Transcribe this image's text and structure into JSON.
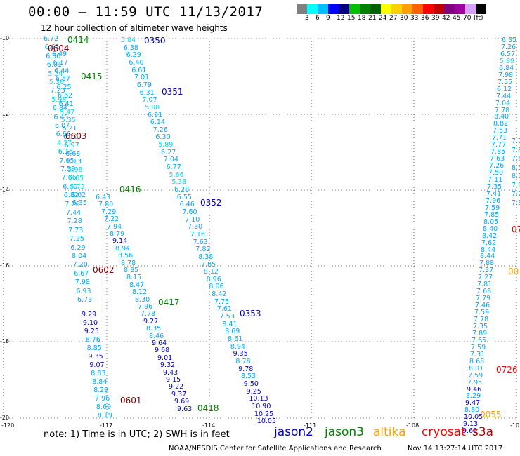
{
  "header": {
    "title": "00:00 – 11:59 UTC 11/13/2017",
    "subtitle": "12 hour collection of altimeter wave heights"
  },
  "color_scale": {
    "colors": [
      "#808080",
      "#00ffff",
      "#00bfff",
      "#0000ff",
      "#000080",
      "#00c000",
      "#008000",
      "#006000",
      "#ffff00",
      "#ffd000",
      "#ffa000",
      "#ff6000",
      "#ff0000",
      "#c00000",
      "#800080",
      "#a000a0",
      "#d8a0ff",
      "#000000"
    ],
    "labels": [
      "3",
      "6",
      "9",
      "12",
      "15",
      "18",
      "21",
      "24",
      "27",
      "30",
      "33",
      "36",
      "39",
      "42",
      "45",
      "70",
      "(ft)"
    ]
  },
  "axes": {
    "lat_labels": [
      "-10",
      "-12",
      "-14",
      "-16",
      "-18",
      "-20"
    ],
    "lon_labels": [
      "-120",
      "-117",
      "-114",
      "-111",
      "-108",
      "-10"
    ]
  },
  "tracks": [
    {
      "id": "0414",
      "color": "#008000"
    },
    {
      "id": "0604",
      "color": "#800000"
    },
    {
      "id": "0415",
      "color": "#008000"
    },
    {
      "id": "0603",
      "color": "#800000"
    },
    {
      "id": "0416",
      "color": "#008000"
    },
    {
      "id": "0602",
      "color": "#800000"
    },
    {
      "id": "0417",
      "color": "#008000"
    },
    {
      "id": "0601",
      "color": "#800000"
    },
    {
      "id": "0418",
      "color": "#008000"
    },
    {
      "id": "0350",
      "color": "#0000c0"
    },
    {
      "id": "0351",
      "color": "#0000c0"
    },
    {
      "id": "0352",
      "color": "#0000c0"
    },
    {
      "id": "0353",
      "color": "#0000c0"
    },
    {
      "id": "0726",
      "color": "#ff0000"
    },
    {
      "id": "0055",
      "color": "#ffa000"
    },
    {
      "id": "07",
      "color": "#ff0000"
    },
    {
      "id": "00",
      "color": "#ffa000"
    }
  ],
  "columns": {
    "colA": [
      "6.72",
      "6.61",
      "6.56",
      "6.01",
      "5.24",
      "5.36",
      "7.23",
      "5.98",
      "6.84",
      "6.45",
      "6.07",
      "6.66",
      "4.27",
      "6.16",
      "7.05",
      "7.58",
      "7.66",
      "6.40",
      "6.82",
      "7.26",
      "7.44",
      "7.28",
      "7.73",
      "7.25",
      "6.29",
      "8.04",
      "7.20",
      "6.67",
      "7.98",
      "6.93",
      "6.73"
    ],
    "colB": [
      "6.49",
      "6.17",
      "6.44",
      "6.57",
      "6.25",
      "6.62",
      "6.41",
      "5.47",
      "5.35",
      "6.21",
      "6.10",
      "6.97",
      "6.68",
      "6.13",
      "5.98",
      "5.65",
      "5.72",
      "6.02",
      "6.35"
    ],
    "colC": [
      "9.29",
      "9.10",
      "9.25",
      "8.76",
      "8.85",
      "9.35",
      "9.07",
      "8.83",
      "8.84",
      "8.29",
      "7.96",
      "8.69",
      "8.19"
    ],
    "colD": [
      "6.43",
      "7.80",
      "7.29",
      "7.22",
      "7.94",
      "8.79",
      "9.14",
      "8.94",
      "8.56",
      "8.78",
      "8.85",
      "8.15",
      "8.47",
      "8.12",
      "8.30",
      "7.96",
      "7.78",
      "9.27",
      "8.35",
      "8.46",
      "9.64",
      "9.68",
      "9.01",
      "9.32",
      "9.43",
      "9.15",
      "9.22",
      "9.37",
      "9.69",
      "9.63"
    ],
    "colE": [
      "5.84",
      "6.38",
      "6.29",
      "6.40",
      "6.61",
      "7.01",
      "6.79",
      "6.31",
      "7.07",
      "5.98",
      "6.91",
      "6.14",
      "7.26",
      "6.30",
      "5.89",
      "6.27",
      "7.04",
      "6.77",
      "5.66",
      "5.38",
      "6.28",
      "6.55",
      "6.46",
      "7.60",
      "7.10",
      "7.30",
      "7.16",
      "7.63",
      "7.82",
      "8.38",
      "7.85",
      "8.12",
      "8.96",
      "8.06",
      "8.42",
      "7.75",
      "7.61",
      "7.53",
      "8.41",
      "8.69",
      "8.61",
      "8.94",
      "9.35",
      "8.78",
      "9.78",
      "8.53",
      "9.50",
      "9.25",
      "10.13",
      "10.90",
      "10.25",
      "10.05"
    ],
    "colF": [
      "6.35",
      "7.26",
      "6.57",
      "5.89",
      "6.84",
      "7.98",
      "7.55",
      "6.12",
      "7.44",
      "7.04",
      "7.78",
      "8.40",
      "8.82",
      "7.53",
      "7.71",
      "7.77",
      "7.85",
      "7.63",
      "7.26",
      "7.50",
      "7.11",
      "7.35",
      "7.41",
      "7.96",
      "7.59",
      "7.85",
      "8.05",
      "8.40",
      "8.42",
      "7.62",
      "8.44",
      "8.44",
      "7.88",
      "7.37",
      "7.27",
      "7.81",
      "7.68",
      "7.79",
      "7.46",
      "7.59",
      "7.78",
      "7.35",
      "7.89",
      "7.65",
      "7.59",
      "7.31",
      "8.68",
      "8.01",
      "7.59",
      "7.95",
      "9.46",
      "8.29",
      "9.47",
      "8.80",
      "10.05",
      "9.13",
      "9.69"
    ],
    "colG": [
      "7.7",
      "7.8",
      "7.6",
      "8.5",
      "8.1",
      "7.9",
      "7.7",
      "7.8"
    ]
  },
  "footer": {
    "note": "note:  1) Time is in UTC;  2) SWH is in feet",
    "legend": [
      {
        "name": "jason2",
        "color": "#0000c0"
      },
      {
        "name": "jason3",
        "color": "#008000"
      },
      {
        "name": "altika",
        "color": "#ffa000"
      },
      {
        "name": "cryosat",
        "color": "#ff0000"
      },
      {
        "name": "s3a",
        "color": "#c00000"
      }
    ],
    "credit": "NOAA/NESDIS Center for Satellite Applications and Research",
    "timestamp": "Nov 14 13:27:14 UTC 2017"
  }
}
